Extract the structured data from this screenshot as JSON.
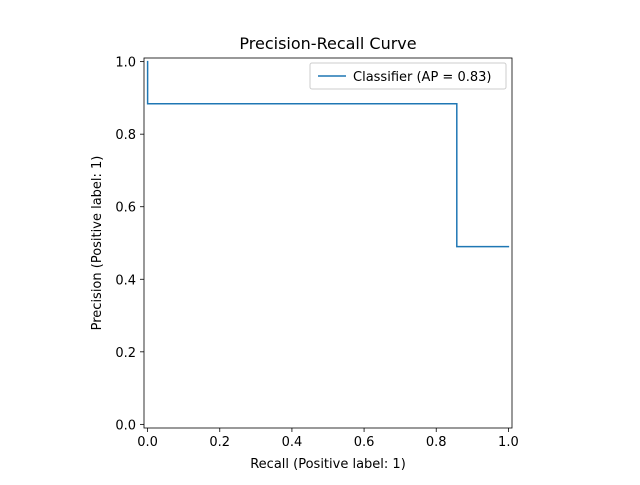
{
  "chart_data": {
    "type": "line",
    "title": "Precision-Recall Curve",
    "xlabel": "Recall (Positive label: 1)",
    "ylabel": "Precision (Positive label: 1)",
    "xlim": [
      -0.01,
      1.01
    ],
    "ylim": [
      -0.01,
      1.01
    ],
    "xticks": [
      0.0,
      0.2,
      0.4,
      0.6,
      0.8,
      1.0
    ],
    "yticks": [
      0.0,
      0.2,
      0.4,
      0.6,
      0.8,
      1.0
    ],
    "xtick_labels": [
      "0.0",
      "0.2",
      "0.4",
      "0.6",
      "0.8",
      "1.0"
    ],
    "ytick_labels": [
      "0.0",
      "0.2",
      "0.4",
      "0.6",
      "0.8",
      "1.0"
    ],
    "grid": false,
    "legend_position": "upper right",
    "series": [
      {
        "name": "Classifier (AP = 0.83)",
        "color": "#1f77b4",
        "drawstyle": "steps-post",
        "recall": [
          1.0,
          0.857,
          0.857,
          0.0,
          0.0
        ],
        "precision": [
          0.49,
          0.49,
          0.884,
          0.884,
          1.0
        ]
      }
    ]
  }
}
